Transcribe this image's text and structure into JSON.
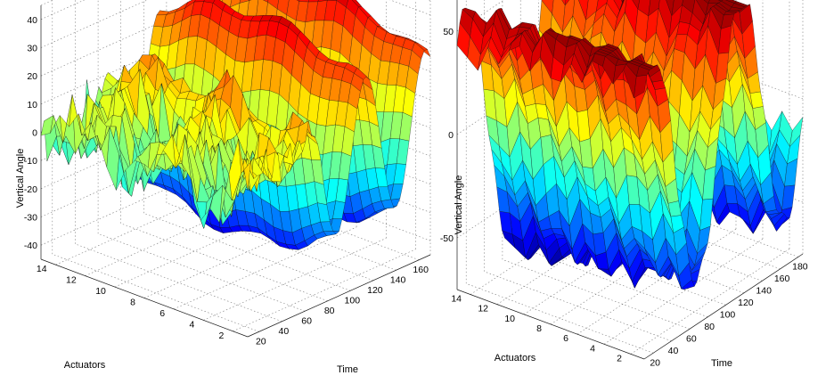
{
  "chart_data": [
    {
      "type": "surface",
      "panel": "left",
      "zlabel": "Vertical Angle",
      "xlabel": "Time",
      "ylabel": "Actuators",
      "x_ticks": [
        20,
        40,
        60,
        80,
        100,
        120,
        140,
        160
      ],
      "y_ticks": [
        2,
        4,
        6,
        8,
        10,
        12,
        14
      ],
      "z_ticks": [
        -40,
        -30,
        -20,
        -10,
        0,
        10,
        20,
        30,
        40
      ],
      "xlim": [
        10,
        170
      ],
      "ylim": [
        1,
        15
      ],
      "zlim": [
        -45,
        45
      ],
      "grid": true,
      "colormap": "jet",
      "surface": {
        "description_free": true,
        "model": "noise_then_oscillation",
        "calm_until_time": 60,
        "calm_amplitude": 8,
        "troughs": [
          {
            "time": 60,
            "depth": -42
          },
          {
            "time": 110,
            "depth": -35
          },
          {
            "time": 150,
            "depth": -30
          }
        ],
        "peaks": [
          {
            "time": 90,
            "height": 35
          },
          {
            "time": 130,
            "height": 30
          },
          {
            "time": 165,
            "height": 38
          }
        ]
      }
    },
    {
      "type": "surface",
      "panel": "right",
      "zlabel": "Vertical Angle",
      "xlabel": "Time",
      "ylabel": "Actuators",
      "x_ticks": [
        20,
        40,
        60,
        80,
        100,
        120,
        140,
        160,
        180
      ],
      "y_ticks": [
        2,
        4,
        6,
        8,
        10,
        12,
        14
      ],
      "z_ticks": [
        -50,
        0,
        50
      ],
      "xlim": [
        10,
        185
      ],
      "ylim": [
        1,
        15
      ],
      "zlim": [
        -75,
        65
      ],
      "grid": true,
      "colormap": "jet",
      "surface": {
        "model": "ridged_sine",
        "peaks": [
          {
            "time": 20,
            "height": 60
          },
          {
            "time": 115,
            "height": 62
          },
          {
            "time": 180,
            "height": 45
          }
        ],
        "troughs": [
          {
            "time": 70,
            "depth": -65
          },
          {
            "time": 150,
            "depth": -70
          }
        ]
      }
    }
  ]
}
